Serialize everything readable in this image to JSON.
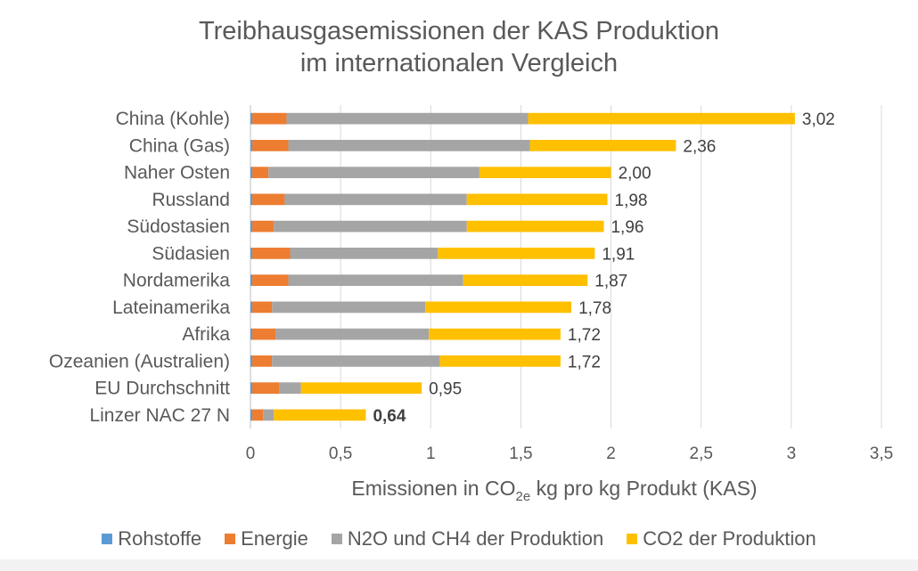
{
  "chart_data": {
    "type": "bar",
    "orientation": "horizontal",
    "stacked": true,
    "title_lines": [
      "Treibhausgasemissionen der KAS Produktion",
      "im internationalen Vergleich"
    ],
    "xlabel_prefix": "Emissionen in CO",
    "xlabel_sub": "2e",
    "xlabel_suffix": " kg pro kg Produkt (KAS)",
    "xlim": [
      0,
      3.5
    ],
    "x_ticks": [
      0,
      0.5,
      1,
      1.5,
      2,
      2.5,
      3,
      3.5
    ],
    "x_tick_labels": [
      "0",
      "0,5",
      "1",
      "1,5",
      "2",
      "2,5",
      "3",
      "3,5"
    ],
    "grid": "vertical",
    "legend_position": "bottom",
    "categories": [
      "China (Kohle)",
      "China (Gas)",
      "Naher Osten",
      "Russland",
      "Südostasien",
      "Südasien",
      "Nordamerika",
      "Lateinamerika",
      "Afrika",
      "Ozeanien (Australien)",
      "EU Durchschnitt",
      "Linzer NAC 27 N"
    ],
    "series": [
      {
        "name": "Rohstoffe",
        "color": "#5b9bd5",
        "values": [
          0.01,
          0.01,
          0.01,
          0.01,
          0.01,
          0.01,
          0.01,
          0.01,
          0.01,
          0.01,
          0.01,
          0.01
        ]
      },
      {
        "name": "Energie",
        "color": "#ed7d31",
        "values": [
          0.19,
          0.2,
          0.09,
          0.18,
          0.12,
          0.21,
          0.2,
          0.11,
          0.13,
          0.11,
          0.15,
          0.06
        ]
      },
      {
        "name": "N2O und CH4 der Produktion",
        "color": "#a5a5a5",
        "values": [
          1.34,
          1.34,
          1.17,
          1.01,
          1.07,
          0.82,
          0.97,
          0.85,
          0.85,
          0.93,
          0.12,
          0.06
        ]
      },
      {
        "name": "CO2 der Produktion",
        "color": "#ffc000",
        "values": [
          1.48,
          0.81,
          0.73,
          0.78,
          0.76,
          0.87,
          0.69,
          0.81,
          0.73,
          0.67,
          0.67,
          0.51
        ]
      }
    ],
    "totals": [
      3.02,
      2.36,
      2.0,
      1.98,
      1.96,
      1.91,
      1.87,
      1.78,
      1.72,
      1.72,
      0.95,
      0.64
    ],
    "total_labels": [
      "3,02",
      "2,36",
      "2,00",
      "1,98",
      "1,96",
      "1,91",
      "1,87",
      "1,78",
      "1,72",
      "1,72",
      "0,95",
      "0,64"
    ],
    "bold_total_label_index": 11
  }
}
